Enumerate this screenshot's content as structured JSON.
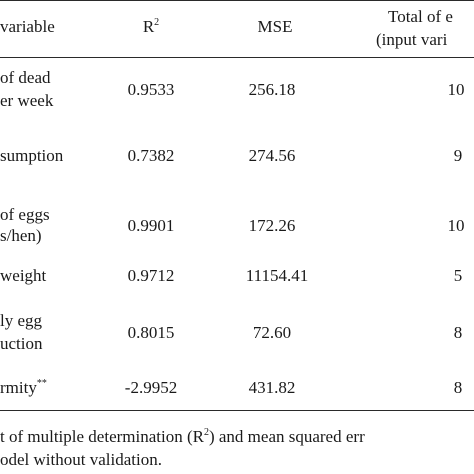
{
  "table": {
    "headers": {
      "variable": "variable",
      "r2_base": "R",
      "r2_sup": "2",
      "mse": "MSE",
      "total_line1": "Total of e",
      "total_line2": "(input vari"
    },
    "rows": [
      {
        "variable_line1": "of dead",
        "variable_line2": "er week",
        "r2": "0.9533",
        "mse": "256.18",
        "total": "10"
      },
      {
        "variable_line1": "sumption",
        "variable_line2": "",
        "r2": "0.7382",
        "mse": "274.56",
        "total": "9"
      },
      {
        "variable_line1": "of eggs",
        "variable_line2": "s/hen)",
        "r2": "0.9901",
        "mse": "172.26",
        "total": "10"
      },
      {
        "variable_line1": "weight",
        "variable_line2": "",
        "r2": "0.9712",
        "mse": "11154.41",
        "total": "5"
      },
      {
        "variable_line1": "ly egg",
        "variable_line2": "uction",
        "r2": "0.8015",
        "mse": "72.60",
        "total": "8"
      },
      {
        "variable_line1": "rmity",
        "variable_line1_sup": "**",
        "variable_line2": "",
        "r2": "-2.9952",
        "mse": "431.82",
        "total": "8"
      }
    ]
  },
  "footnote": {
    "line1_a": "t of multiple determination (R",
    "line1_sup": "2",
    "line1_b": ") and mean squared err",
    "line2": "odel without validation."
  }
}
